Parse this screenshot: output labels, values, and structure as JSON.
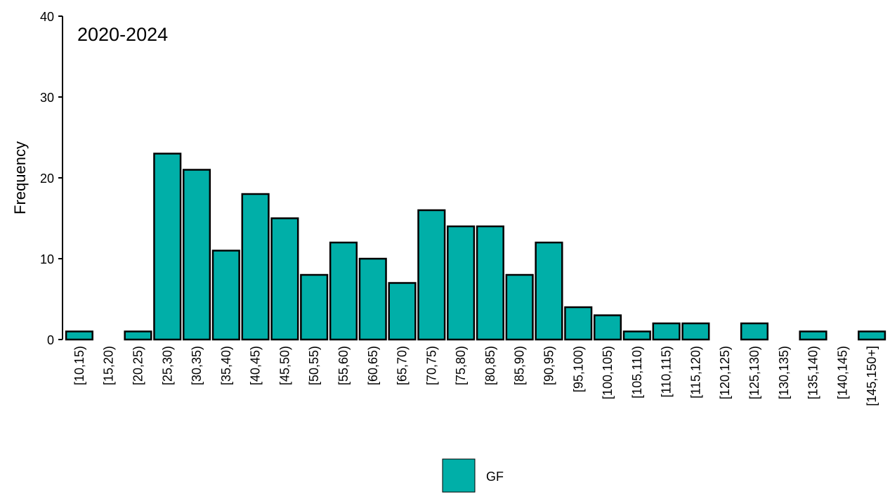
{
  "chart_data": {
    "type": "bar",
    "title": "2020-2024",
    "y_label": "Frequency",
    "categories": [
      "[10,15)",
      "[15,20)",
      "[20,25)",
      "[25,30)",
      "[30,35)",
      "[35,40)",
      "[40,45)",
      "[45,50)",
      "[50,55)",
      "[55,60)",
      "[60,65)",
      "[65,70)",
      "[70,75)",
      "[75,80)",
      "[80,85)",
      "[85,90)",
      "[90,95)",
      "[95,100)",
      "[100,105)",
      "[105,110)",
      "[110,115)",
      "[115,120)",
      "[120,125)",
      "[125,130)",
      "[130,135)",
      "[135,140)",
      "[140,145)",
      "[145,150+]"
    ],
    "series": [
      {
        "name": "GF",
        "color": "#00afa8",
        "values": [
          1,
          0,
          1,
          23,
          21,
          11,
          18,
          15,
          8,
          12,
          10,
          7,
          16,
          14,
          14,
          8,
          12,
          4,
          3,
          1,
          2,
          2,
          0,
          2,
          0,
          1,
          0,
          1
        ]
      }
    ],
    "ylim": [
      0,
      40
    ],
    "yticks": [
      0,
      10,
      20,
      30,
      40
    ],
    "grid": false,
    "legend": "bottom"
  }
}
